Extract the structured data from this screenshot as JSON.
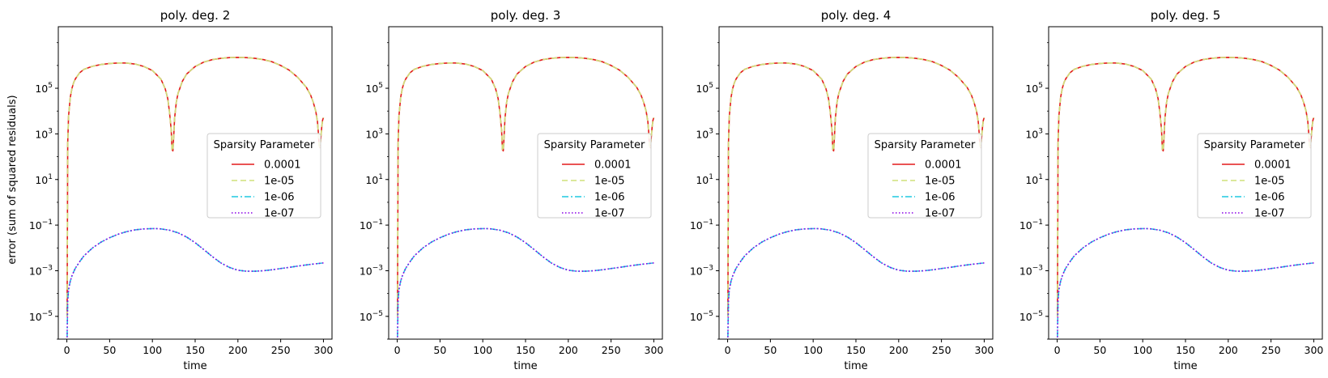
{
  "figure": {
    "ylabel": "error (sum of squared residuals)",
    "xlabel": "time"
  },
  "chart_data": [
    {
      "type": "line",
      "title": "poly. deg. 2",
      "xlabel": "time",
      "ylabel": "error (sum of squared residuals)",
      "xlim": [
        -10,
        310
      ],
      "ylim": [
        1e-06,
        50000000.0
      ],
      "yscale": "log",
      "xticks": [
        0,
        50,
        100,
        150,
        200,
        250,
        300
      ],
      "yticks": [
        1e-05,
        0.001,
        0.1,
        10,
        1000.0,
        100000.0
      ],
      "ytick_labels": [
        [
          "10",
          "−5"
        ],
        [
          "10",
          "−3"
        ],
        [
          "10",
          "−1"
        ],
        [
          "10",
          "1"
        ],
        [
          "10",
          "3"
        ],
        [
          "10",
          "5"
        ]
      ],
      "legend": {
        "title": "Sparsity Parameter",
        "placement": "center-right"
      },
      "series": [
        {
          "name": "0.0001",
          "color": "#e41a1c",
          "dash": "solid",
          "group": "high"
        },
        {
          "name": "1e-05",
          "color": "#cfe07a",
          "dash": "dashed",
          "group": "high"
        },
        {
          "name": "1e-06",
          "color": "#1fc8e0",
          "dash": "dashdot",
          "group": "low"
        },
        {
          "name": "1e-07",
          "color": "#8a00e6",
          "dash": "dotted",
          "group": "low"
        }
      ],
      "curves": {
        "high": {
          "x": [
            0.3,
            1,
            2,
            4,
            6,
            8,
            10,
            15,
            20,
            30,
            40,
            50,
            60,
            65,
            70,
            80,
            90,
            100,
            110,
            115,
            118,
            120,
            122,
            123,
            124,
            125,
            126,
            128,
            130,
            135,
            140,
            150,
            160,
            170,
            180,
            190,
            200,
            210,
            220,
            230,
            240,
            250,
            260,
            270,
            280,
            285,
            288,
            291,
            293,
            294,
            295,
            296,
            297,
            298,
            299,
            300
          ],
          "y": [
            1e-05,
            400,
            6000,
            40000,
            100000,
            180000,
            260000,
            480000,
            680000,
            920000,
            1100000,
            1220000,
            1280000,
            1290000,
            1270000,
            1150000,
            900000,
            600000,
            250000,
            95000,
            35000,
            9000,
            1500,
            200,
            180,
            900,
            5000,
            25000,
            60000,
            200000,
            420000,
            900000,
            1400000,
            1800000,
            2050000,
            2200000,
            2250000,
            2200000,
            2050000,
            1800000,
            1450000,
            1000000,
            620000,
            300000,
            110000,
            50000,
            25000,
            10000,
            3500,
            1200,
            300,
            250,
            700,
            2000,
            4000,
            5200
          ]
        },
        "low": {
          "x": [
            0.3,
            1,
            2,
            4,
            6,
            8,
            10,
            15,
            20,
            30,
            40,
            50,
            60,
            70,
            80,
            90,
            100,
            105,
            110,
            120,
            130,
            140,
            150,
            160,
            170,
            180,
            190,
            200,
            210,
            220,
            230,
            240,
            250,
            260,
            270,
            280,
            290,
            300
          ],
          "y": [
            1.2e-06,
            5e-05,
            0.00015,
            0.00035,
            0.0006,
            0.0009,
            0.0013,
            0.0025,
            0.0045,
            0.01,
            0.018,
            0.028,
            0.04,
            0.052,
            0.062,
            0.068,
            0.07,
            0.07,
            0.068,
            0.06,
            0.046,
            0.03,
            0.017,
            0.0085,
            0.0042,
            0.0022,
            0.0014,
            0.00105,
            0.00095,
            0.00095,
            0.001,
            0.0011,
            0.00125,
            0.0014,
            0.0016,
            0.0018,
            0.002,
            0.0022
          ]
        }
      }
    },
    {
      "type": "line",
      "title": "poly. deg. 3",
      "xlabel": "time",
      "xlim": [
        -10,
        310
      ],
      "ylim": [
        1e-06,
        50000000.0
      ],
      "yscale": "log",
      "xticks": [
        0,
        50,
        100,
        150,
        200,
        250,
        300
      ],
      "yticks": [
        1e-05,
        0.001,
        0.1,
        10,
        1000.0,
        100000.0
      ],
      "ytick_labels": [
        [
          "10",
          "−5"
        ],
        [
          "10",
          "−3"
        ],
        [
          "10",
          "−1"
        ],
        [
          "10",
          "1"
        ],
        [
          "10",
          "3"
        ],
        [
          "10",
          "5"
        ]
      ],
      "legend": {
        "title": "Sparsity Parameter",
        "placement": "center-right"
      },
      "series": [
        {
          "name": "0.0001",
          "color": "#e41a1c",
          "dash": "solid",
          "group": "high"
        },
        {
          "name": "1e-05",
          "color": "#cfe07a",
          "dash": "dashed",
          "group": "high"
        },
        {
          "name": "1e-06",
          "color": "#1fc8e0",
          "dash": "dashdot",
          "group": "low"
        },
        {
          "name": "1e-07",
          "color": "#8a00e6",
          "dash": "dotted",
          "group": "low"
        }
      ],
      "curves": "same-as-first"
    },
    {
      "type": "line",
      "title": "poly. deg. 4",
      "xlabel": "time",
      "xlim": [
        -10,
        310
      ],
      "ylim": [
        1e-06,
        50000000.0
      ],
      "yscale": "log",
      "xticks": [
        0,
        50,
        100,
        150,
        200,
        250,
        300
      ],
      "yticks": [
        1e-05,
        0.001,
        0.1,
        10,
        1000.0,
        100000.0
      ],
      "ytick_labels": [
        [
          "10",
          "−5"
        ],
        [
          "10",
          "−3"
        ],
        [
          "10",
          "−1"
        ],
        [
          "10",
          "1"
        ],
        [
          "10",
          "3"
        ],
        [
          "10",
          "5"
        ]
      ],
      "legend": {
        "title": "Sparsity Parameter",
        "placement": "center-right"
      },
      "series": [
        {
          "name": "0.0001",
          "color": "#e41a1c",
          "dash": "solid",
          "group": "high"
        },
        {
          "name": "1e-05",
          "color": "#cfe07a",
          "dash": "dashed",
          "group": "high"
        },
        {
          "name": "1e-06",
          "color": "#1fc8e0",
          "dash": "dashdot",
          "group": "low"
        },
        {
          "name": "1e-07",
          "color": "#8a00e6",
          "dash": "dotted",
          "group": "low"
        }
      ],
      "curves": "same-as-first"
    },
    {
      "type": "line",
      "title": "poly. deg. 5",
      "xlabel": "time",
      "xlim": [
        -10,
        310
      ],
      "ylim": [
        1e-06,
        50000000.0
      ],
      "yscale": "log",
      "xticks": [
        0,
        50,
        100,
        150,
        200,
        250,
        300
      ],
      "yticks": [
        1e-05,
        0.001,
        0.1,
        10,
        1000.0,
        100000.0
      ],
      "ytick_labels": [
        [
          "10",
          "−5"
        ],
        [
          "10",
          "−3"
        ],
        [
          "10",
          "−1"
        ],
        [
          "10",
          "1"
        ],
        [
          "10",
          "3"
        ],
        [
          "10",
          "5"
        ]
      ],
      "legend": {
        "title": "Sparsity Parameter",
        "placement": "center-right"
      },
      "series": [
        {
          "name": "0.0001",
          "color": "#e41a1c",
          "dash": "solid",
          "group": "high"
        },
        {
          "name": "1e-05",
          "color": "#cfe07a",
          "dash": "dashed",
          "group": "high"
        },
        {
          "name": "1e-06",
          "color": "#1fc8e0",
          "dash": "dashdot",
          "group": "low"
        },
        {
          "name": "1e-07",
          "color": "#8a00e6",
          "dash": "dotted",
          "group": "low"
        }
      ],
      "curves": "same-as-first"
    }
  ]
}
